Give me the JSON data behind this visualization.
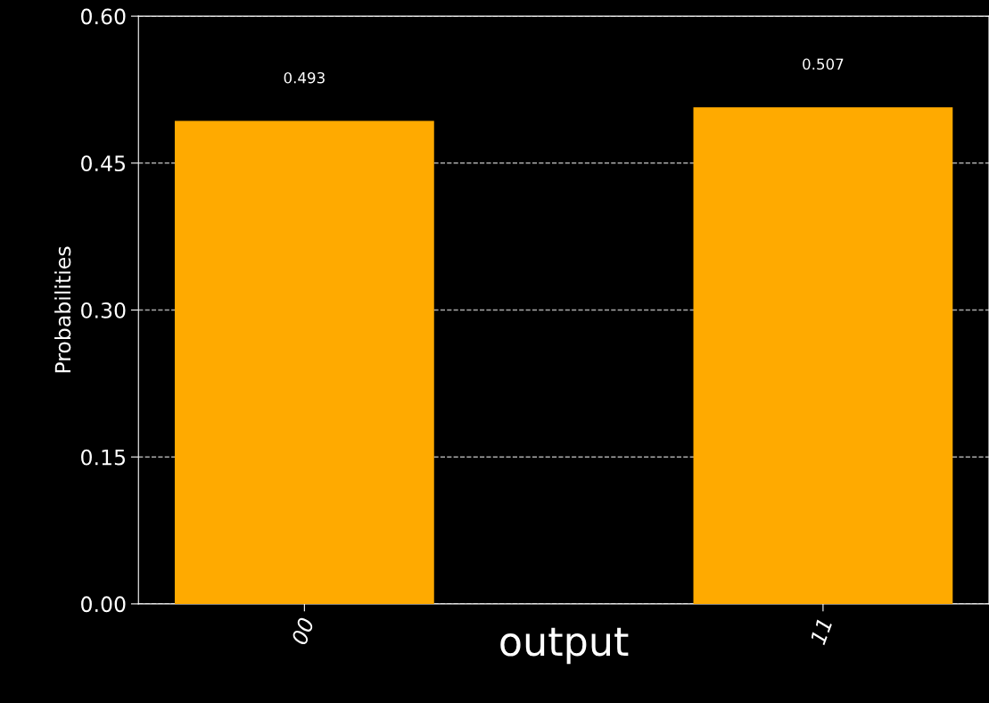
{
  "chart_data": {
    "type": "bar",
    "xlabel": "output",
    "ylabel": "Probabilities",
    "categories": [
      "00",
      "11"
    ],
    "values": [
      0.493,
      0.507
    ],
    "color": "#ffaa00",
    "data_labels": true,
    "ylim": [
      0,
      0.6
    ],
    "yticks": [
      {
        "value": 0,
        "label": "0.00"
      },
      {
        "value": 0.15,
        "label": "0.15"
      },
      {
        "value": 0.3,
        "label": "0.30"
      },
      {
        "value": 0.45,
        "label": "0.45"
      },
      {
        "value": 0.6,
        "label": "0.60"
      }
    ],
    "grid": "y"
  }
}
